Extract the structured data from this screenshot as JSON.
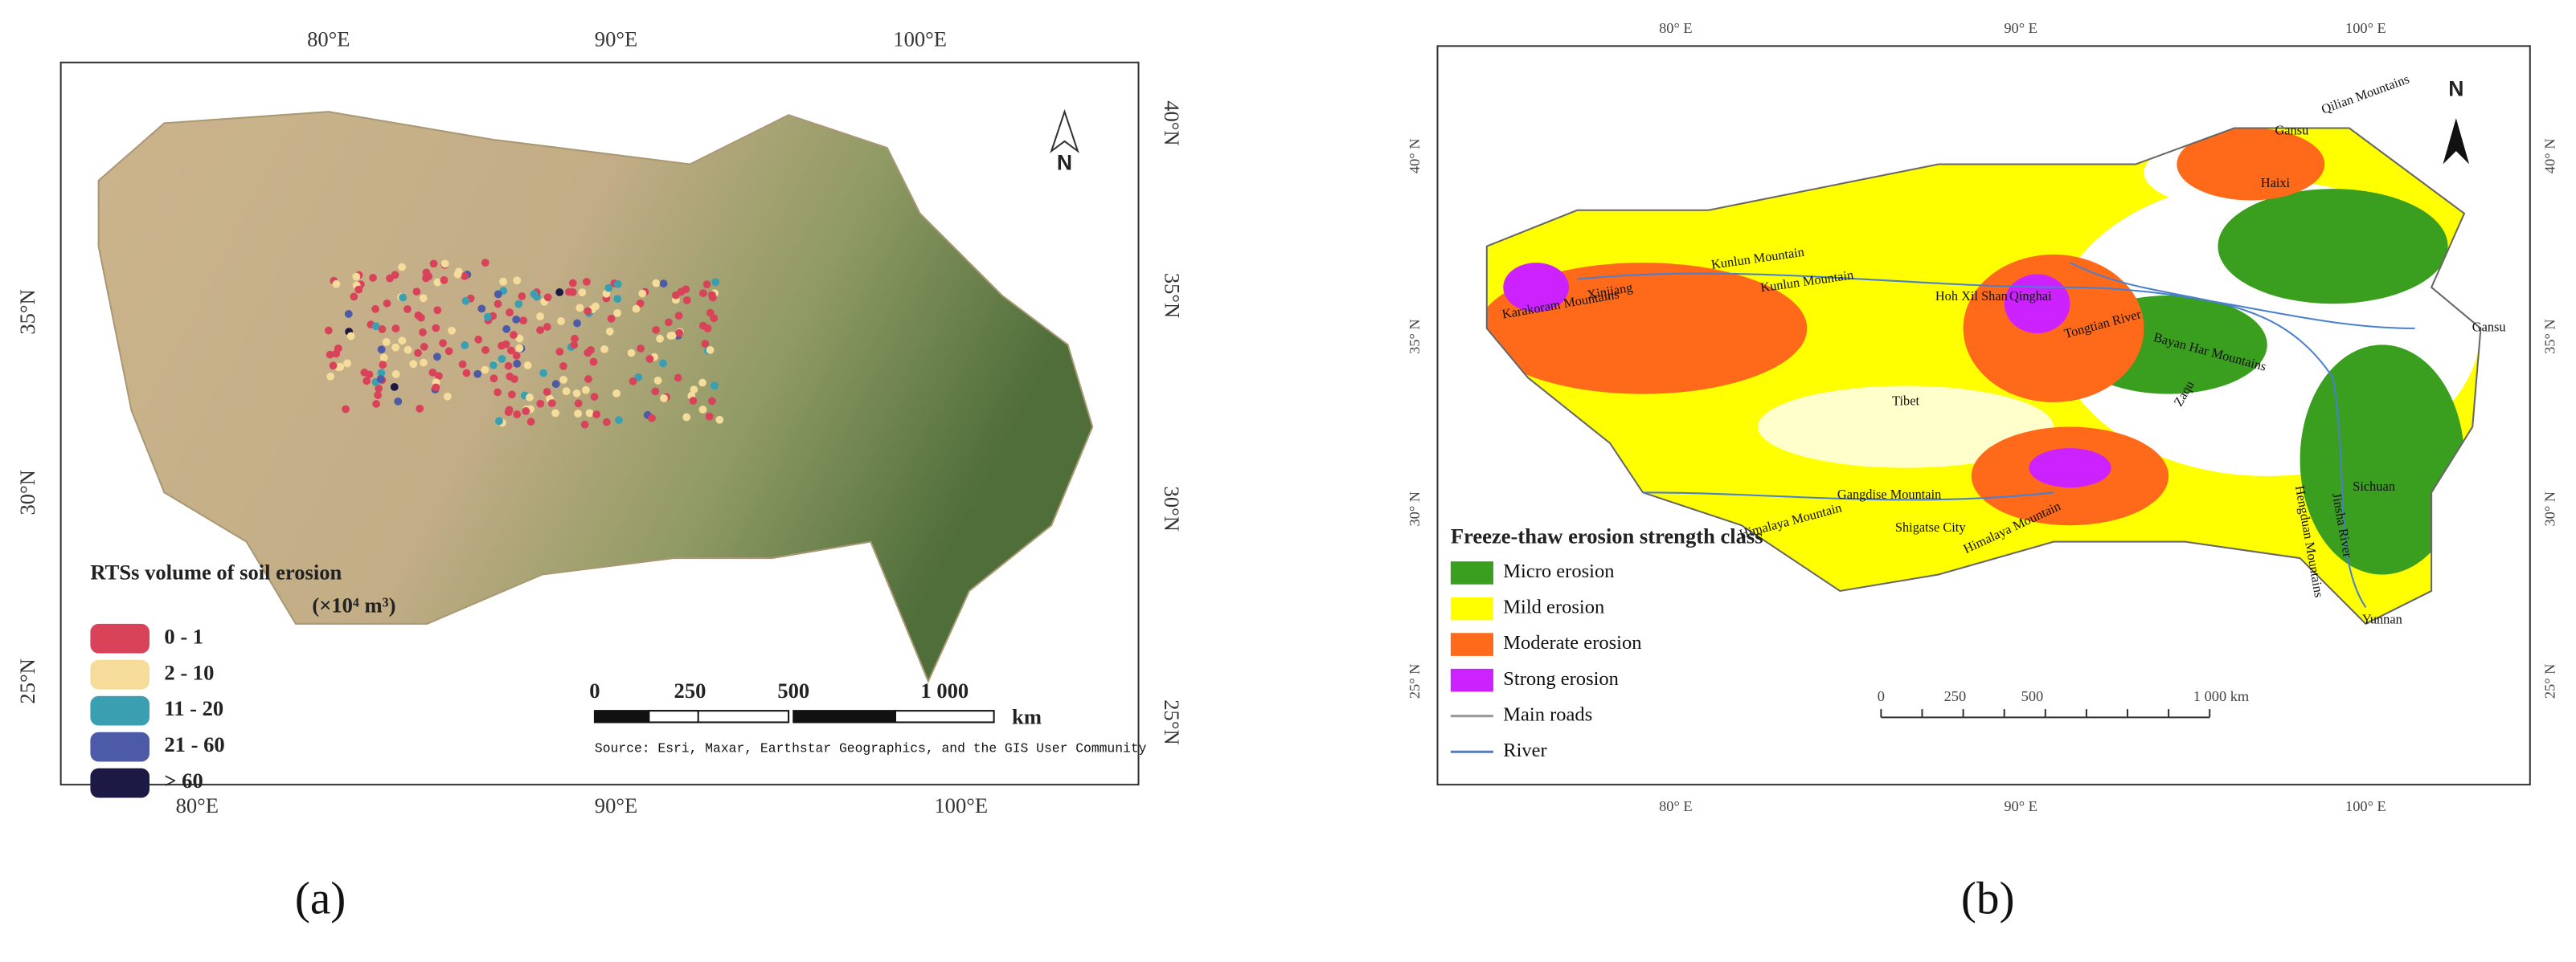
{
  "panels": [
    {
      "caption": "(a)",
      "top_labels": [
        "80°E",
        "90°E",
        "100°E"
      ],
      "bottom_labels": [
        "80°E",
        "90°E",
        "100°E"
      ],
      "left_labels": [
        "35°N",
        "30°N",
        "25°N"
      ],
      "right_labels": [
        "40°N",
        "35°N",
        "30°N",
        "25°N"
      ],
      "north": "N",
      "legend": {
        "title": "RTSs volume of soil erosion",
        "unit": "(×10⁴ m³)",
        "items": [
          {
            "label": "0 - 1",
            "color": "#d9435a"
          },
          {
            "label": "2 - 10",
            "color": "#f5dc9a"
          },
          {
            "label": "11 - 20",
            "color": "#3a9fb0"
          },
          {
            "label": "21 - 60",
            "color": "#4c5aa8"
          },
          {
            "label": "> 60",
            "color": "#1c1a45"
          }
        ]
      },
      "scale": {
        "labels": [
          "0",
          "250",
          "500",
          "1 000",
          "km"
        ]
      },
      "source": "Source: Esri, Maxar, Earthstar Geographics, and the GIS User Community"
    },
    {
      "caption": "(b)",
      "top_labels": [
        "80° E",
        "90° E",
        "100° E"
      ],
      "bottom_labels": [
        "80° E",
        "90° E",
        "100° E"
      ],
      "left_labels": [
        "40° N",
        "35° N",
        "30° N",
        "25° N"
      ],
      "right_labels": [
        "40° N",
        "35° N",
        "30° N",
        "25° N"
      ],
      "north": "N",
      "legend": {
        "title": "Freeze-thaw erosion strength class",
        "items": [
          {
            "label": "Micro erosion",
            "color": "#3a9e1e"
          },
          {
            "label": "Mild erosion",
            "color": "#ffff00"
          },
          {
            "label": "Moderate erosion",
            "color": "#ff6a1a"
          },
          {
            "label": "Strong erosion",
            "color": "#cc22ff"
          },
          {
            "label": "Main roads",
            "color": "#999999",
            "line": true
          },
          {
            "label": "River",
            "color": "#4a7fd0",
            "line": true
          }
        ]
      },
      "scale": {
        "labels": [
          "0",
          "250",
          "500",
          "1 000 km"
        ]
      },
      "places": [
        "Gansu",
        "Qilian Mountains",
        "Haixi",
        "Kunlun Mountain",
        "Kunlun Mountain",
        "Hoh Xil Shan",
        "Qinghai",
        "Xinjiang",
        "Karakoram Mountains",
        "Tongtian River",
        "Bayan Har Mountains",
        "Gansu",
        "Tibet",
        "Zaqu",
        "Sichuan",
        "Gangdise Mountain",
        "Himalaya Mountain",
        "Himalaya Mountain",
        "Jinsha River",
        "Hengduan Mountains",
        "Yunnan",
        "Shigatse City"
      ]
    }
  ]
}
